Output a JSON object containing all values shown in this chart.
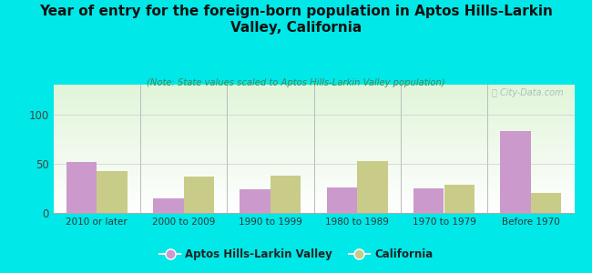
{
  "title": "Year of entry for the foreign-born population in Aptos Hills-Larkin\nValley, California",
  "subtitle": "(Note: State values scaled to Aptos Hills-Larkin Valley population)",
  "categories": [
    "2010 or later",
    "2000 to 2009",
    "1990 to 1999",
    "1980 to 1989",
    "1970 to 1979",
    "Before 1970"
  ],
  "aptos_values": [
    52,
    15,
    24,
    26,
    25,
    83
  ],
  "california_values": [
    42,
    37,
    38,
    53,
    29,
    20
  ],
  "aptos_color": "#cc99cc",
  "california_color": "#c8cc88",
  "background_color": "#00e8e8",
  "title_color": "#111111",
  "subtitle_color": "#448855",
  "bar_width": 0.35,
  "ylim": [
    0,
    130
  ],
  "yticks": [
    0,
    50,
    100
  ],
  "legend_labels": [
    "Aptos Hills-Larkin Valley",
    "California"
  ],
  "watermark": "ⓘ City-Data.com"
}
